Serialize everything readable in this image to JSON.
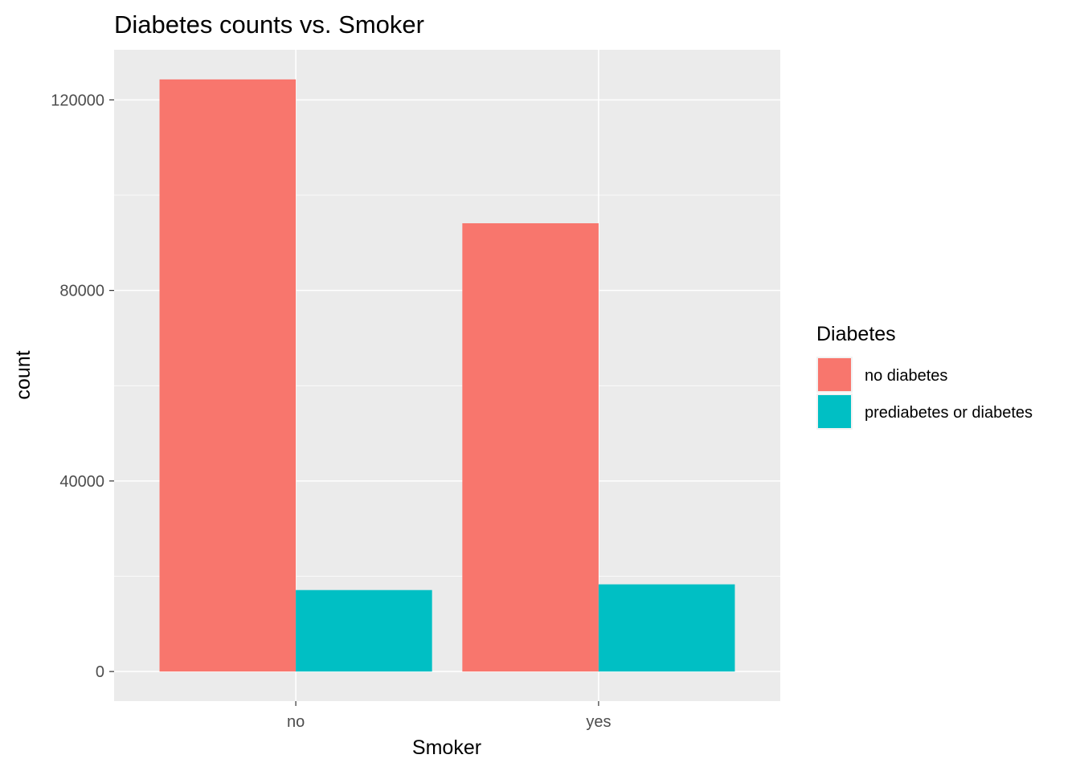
{
  "chart_data": {
    "type": "bar",
    "title": "Diabetes counts vs. Smoker",
    "xlabel": "Smoker",
    "ylabel": "count",
    "categories": [
      "no",
      "yes"
    ],
    "series": [
      {
        "name": "no diabetes",
        "color": "#F8766D",
        "values": [
          124300,
          94100
        ]
      },
      {
        "name": "prediabetes or diabetes",
        "color": "#00BFC4",
        "values": [
          17100,
          18300
        ]
      }
    ],
    "ylim": [
      -6215,
      130515
    ],
    "yticks": [
      0,
      40000,
      80000,
      120000
    ],
    "ytick_labels": [
      "0",
      "40000",
      "80000",
      "120000"
    ],
    "legend": {
      "title": "Diabetes",
      "position": "right"
    },
    "panel_background": "#EBEBEB",
    "grid": true
  }
}
